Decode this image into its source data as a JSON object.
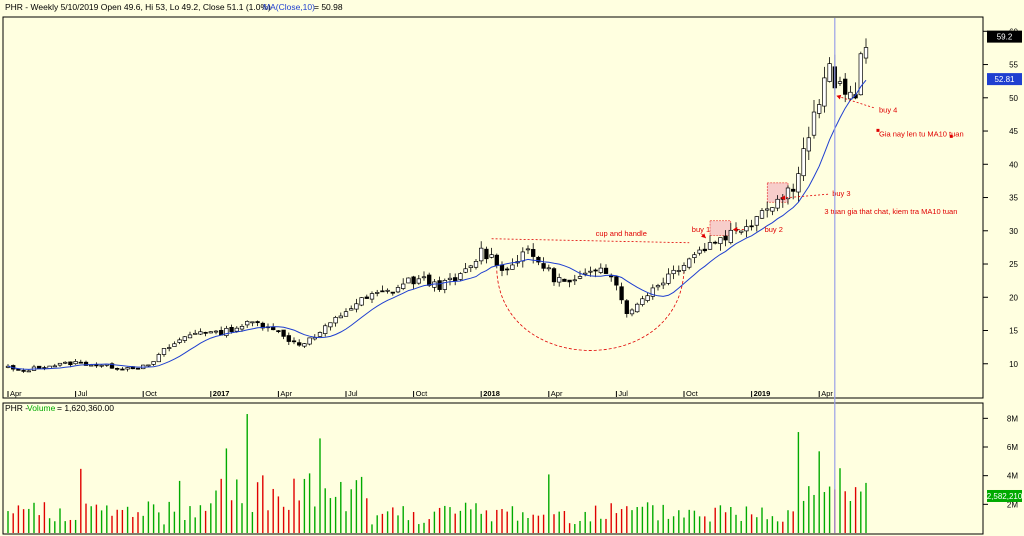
{
  "header": {
    "price_prefix": "PHR - Weekly 5/10/2019 Open 49.6, Hi 53, Lo 49.2, Close 51.1 (1.0%)",
    "ma_label": "MA(Close,10)",
    "ma_value": "= 50.98",
    "volume_prefix": "PHR - ",
    "volume_label": "Volume",
    "volume_value": "= 1,620,360.00"
  },
  "colors": {
    "background": "#ffffe0",
    "up": "#00aa00",
    "down": "#e00000",
    "candle": "#000000",
    "ma": "#1f3fd0",
    "annotation": "#e00000",
    "cursor": "#9aa0e8",
    "tag_price": "#000000",
    "tag_ma": "#1f3fd0",
    "tag_volume": "#00aa00"
  },
  "chart_data": [
    {
      "type": "candlestick",
      "ylim": [
        5,
        62
      ],
      "y_ticks": [
        "10",
        "15",
        "20",
        "25",
        "30",
        "35",
        "40",
        "45",
        "50",
        "55",
        "60"
      ],
      "x_labels": [
        {
          "label": "Apr",
          "index": 0
        },
        {
          "label": "Jul",
          "index": 13
        },
        {
          "label": "Oct",
          "index": 26
        },
        {
          "label": "2017",
          "index": 39
        },
        {
          "label": "Apr",
          "index": 52
        },
        {
          "label": "Jul",
          "index": 65
        },
        {
          "label": "Oct",
          "index": 78
        },
        {
          "label": "2018",
          "index": 91
        },
        {
          "label": "Apr",
          "index": 104
        },
        {
          "label": "Jul",
          "index": 117
        },
        {
          "label": "Oct",
          "index": 130
        },
        {
          "label": "2019",
          "index": 143
        },
        {
          "label": "Apr",
          "index": 156
        }
      ],
      "tags": [
        {
          "label": "59.2",
          "value": 59.2,
          "style": "price"
        },
        {
          "label": "52.81",
          "value": 52.81,
          "style": "ma"
        }
      ],
      "annotations": [
        {
          "id": "cup",
          "label": "cup and handle",
          "x": 113,
          "y": 29.2
        },
        {
          "id": "buy1",
          "label": "buy 1",
          "x": 131.5,
          "y": 29.8
        },
        {
          "id": "buy2",
          "label": "buy 2",
          "x": 145.5,
          "y": 29.8
        },
        {
          "id": "buy3",
          "label": "buy 3",
          "x": 158.5,
          "y": 35.2
        },
        {
          "id": "note3",
          "label": "3 tuan gia that chat, kiem tra MA10 tuan",
          "x": 157,
          "y": 32.5
        },
        {
          "id": "buy4",
          "label": "buy 4",
          "x": 167.5,
          "y": 47.8
        },
        {
          "id": "note4",
          "label": "Gia nay len tu MA10 tuan",
          "x": 167.5,
          "y": 44.2
        }
      ],
      "cursor_index": 159
    },
    {
      "type": "bar",
      "series": "volume",
      "ylim": [
        0,
        9000000
      ],
      "y_ticks": [
        {
          "label": "2M",
          "value": 2000000
        },
        {
          "label": "4M",
          "value": 4000000
        },
        {
          "label": "6M",
          "value": 6000000
        },
        {
          "label": "8M",
          "value": 8000000
        }
      ],
      "tags": [
        {
          "label": "2,582,210",
          "value": 2582210,
          "style": "volume"
        }
      ]
    }
  ]
}
